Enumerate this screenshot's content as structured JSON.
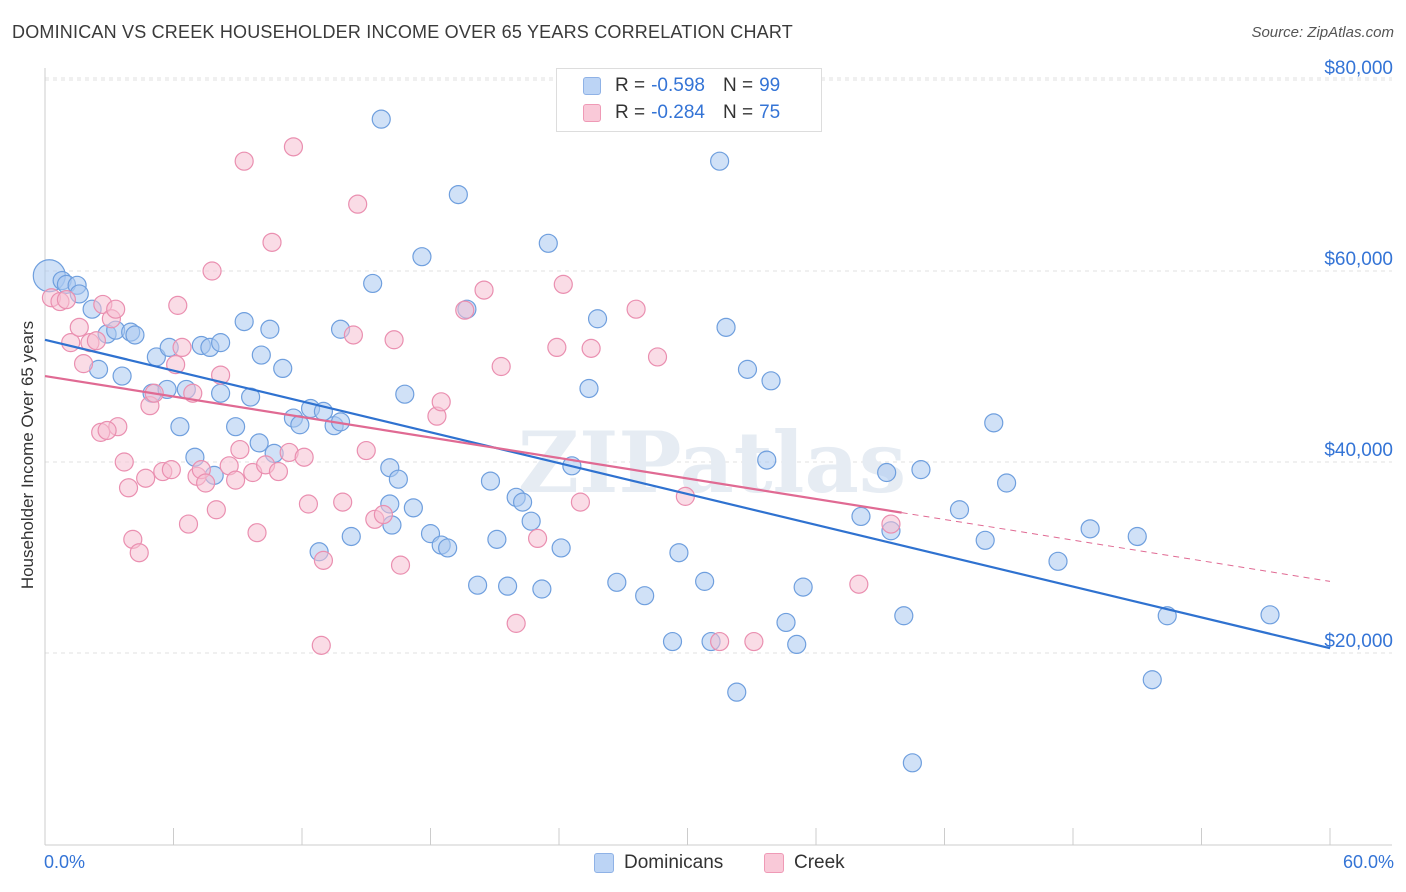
{
  "title": "DOMINICAN VS CREEK HOUSEHOLDER INCOME OVER 65 YEARS CORRELATION CHART",
  "source": "Source: ZipAtlas.com",
  "watermark": "ZIPatlas",
  "legend": {
    "rows": [
      {
        "r_label": "R =",
        "r_value": "-0.598",
        "n_label": "N =",
        "n_value": "99"
      },
      {
        "r_label": "R =",
        "r_value": "-0.284",
        "n_label": "N =",
        "n_value": "75"
      }
    ]
  },
  "bottom_legend": {
    "series1": "Dominicans",
    "series2": "Creek"
  },
  "colors": {
    "blue_fill": "#a9c8f0",
    "blue_stroke": "#6f9fde",
    "blue_line": "#2f72d0",
    "pink_fill": "#f6bfd1",
    "pink_stroke": "#ea8fb0",
    "pink_line": "#e06a93",
    "axis_text": "#3474d6",
    "grid": "#e2e2e2"
  },
  "chart_data": {
    "type": "scatter",
    "title": "DOMINICAN VS CREEK HOUSEHOLDER INCOME OVER 65 YEARS CORRELATION CHART",
    "xlabel": "",
    "ylabel": "Householder Income Over 65 years",
    "xlim": [
      0,
      60
    ],
    "ylim": [
      0,
      82000
    ],
    "x_tick_labels": [
      "0.0%",
      "60.0%"
    ],
    "y_ticks": [
      20000,
      40000,
      60000,
      80000
    ],
    "y_tick_labels": [
      "$20,000",
      "$40,000",
      "$60,000",
      "$80,000"
    ],
    "grid": true,
    "series": [
      {
        "name": "Dominicans",
        "points": [
          [
            0.2,
            59500
          ],
          [
            0.8,
            59000
          ],
          [
            1.0,
            58600
          ],
          [
            1.5,
            58500
          ],
          [
            1.6,
            57600
          ],
          [
            2.2,
            56000
          ],
          [
            2.9,
            53400
          ],
          [
            3.3,
            53800
          ],
          [
            4.0,
            53600
          ],
          [
            4.2,
            53300
          ],
          [
            2.5,
            49700
          ],
          [
            3.6,
            49000
          ],
          [
            5.2,
            51000
          ],
          [
            5.8,
            52000
          ],
          [
            7.3,
            52200
          ],
          [
            7.7,
            52000
          ],
          [
            8.2,
            52500
          ],
          [
            9.3,
            54700
          ],
          [
            10.1,
            51200
          ],
          [
            10.5,
            53900
          ],
          [
            5.0,
            47200
          ],
          [
            5.7,
            47600
          ],
          [
            6.6,
            47600
          ],
          [
            8.2,
            47200
          ],
          [
            9.6,
            46800
          ],
          [
            11.1,
            49800
          ],
          [
            6.3,
            43700
          ],
          [
            7.0,
            40500
          ],
          [
            7.9,
            38600
          ],
          [
            8.9,
            43700
          ],
          [
            10.7,
            40900
          ],
          [
            11.6,
            44600
          ],
          [
            11.9,
            43900
          ],
          [
            12.4,
            45600
          ],
          [
            13.0,
            45300
          ],
          [
            13.5,
            43800
          ],
          [
            13.8,
            44200
          ],
          [
            13.8,
            53900
          ],
          [
            15.3,
            58700
          ],
          [
            15.7,
            75900
          ],
          [
            16.1,
            39400
          ],
          [
            16.5,
            38200
          ],
          [
            17.2,
            35200
          ],
          [
            16.1,
            35600
          ],
          [
            16.8,
            47100
          ],
          [
            17.6,
            61500
          ],
          [
            18.0,
            32500
          ],
          [
            18.5,
            31300
          ],
          [
            18.8,
            31000
          ],
          [
            19.3,
            68000
          ],
          [
            19.7,
            56000
          ],
          [
            20.2,
            27100
          ],
          [
            20.8,
            38000
          ],
          [
            21.1,
            31900
          ],
          [
            21.6,
            27000
          ],
          [
            22.0,
            36300
          ],
          [
            22.3,
            35800
          ],
          [
            22.7,
            33800
          ],
          [
            23.2,
            26700
          ],
          [
            23.5,
            62900
          ],
          [
            24.1,
            31000
          ],
          [
            24.6,
            39600
          ],
          [
            25.4,
            47700
          ],
          [
            25.8,
            55000
          ],
          [
            26.7,
            27400
          ],
          [
            28.0,
            26000
          ],
          [
            29.3,
            21200
          ],
          [
            29.6,
            30500
          ],
          [
            30.8,
            27500
          ],
          [
            31.1,
            21200
          ],
          [
            31.5,
            71500
          ],
          [
            31.8,
            54100
          ],
          [
            32.3,
            15900
          ],
          [
            32.8,
            49700
          ],
          [
            33.7,
            40200
          ],
          [
            33.9,
            48500
          ],
          [
            34.6,
            23200
          ],
          [
            35.1,
            20900
          ],
          [
            35.4,
            26900
          ],
          [
            38.1,
            34300
          ],
          [
            39.3,
            38900
          ],
          [
            39.5,
            32800
          ],
          [
            40.1,
            23900
          ],
          [
            40.5,
            8500
          ],
          [
            40.9,
            39200
          ],
          [
            42.7,
            35000
          ],
          [
            43.9,
            31800
          ],
          [
            44.3,
            44100
          ],
          [
            44.9,
            37800
          ],
          [
            47.3,
            29600
          ],
          [
            48.8,
            33000
          ],
          [
            51.0,
            32200
          ],
          [
            51.7,
            17200
          ],
          [
            52.4,
            23900
          ],
          [
            57.2,
            24000
          ],
          [
            12.8,
            30600
          ],
          [
            16.2,
            33400
          ],
          [
            14.3,
            32200
          ],
          [
            10.0,
            42000
          ]
        ]
      },
      {
        "name": "Creek",
        "points": [
          [
            0.3,
            57200
          ],
          [
            0.7,
            56800
          ],
          [
            1.0,
            57000
          ],
          [
            1.2,
            52500
          ],
          [
            1.6,
            54100
          ],
          [
            1.8,
            50300
          ],
          [
            2.1,
            52500
          ],
          [
            2.4,
            52700
          ],
          [
            2.7,
            56500
          ],
          [
            3.1,
            55000
          ],
          [
            3.3,
            56000
          ],
          [
            3.4,
            43700
          ],
          [
            2.6,
            43100
          ],
          [
            2.9,
            43300
          ],
          [
            3.7,
            40000
          ],
          [
            3.9,
            37300
          ],
          [
            4.1,
            31900
          ],
          [
            4.4,
            30500
          ],
          [
            4.7,
            38300
          ],
          [
            4.9,
            45900
          ],
          [
            5.1,
            47200
          ],
          [
            5.5,
            39000
          ],
          [
            5.9,
            39200
          ],
          [
            6.1,
            50200
          ],
          [
            6.2,
            56400
          ],
          [
            6.4,
            52000
          ],
          [
            6.7,
            33500
          ],
          [
            6.9,
            47200
          ],
          [
            7.1,
            38500
          ],
          [
            7.3,
            39200
          ],
          [
            7.5,
            37800
          ],
          [
            7.8,
            60000
          ],
          [
            8.0,
            35000
          ],
          [
            8.2,
            49100
          ],
          [
            8.6,
            39600
          ],
          [
            8.9,
            38100
          ],
          [
            9.1,
            41300
          ],
          [
            9.3,
            71500
          ],
          [
            9.7,
            38900
          ],
          [
            9.9,
            32600
          ],
          [
            10.3,
            39700
          ],
          [
            10.6,
            63000
          ],
          [
            10.9,
            39000
          ],
          [
            11.4,
            41000
          ],
          [
            11.6,
            73000
          ],
          [
            12.3,
            35600
          ],
          [
            13.0,
            29700
          ],
          [
            12.9,
            20800
          ],
          [
            13.9,
            35800
          ],
          [
            14.4,
            53300
          ],
          [
            14.6,
            67000
          ],
          [
            15.0,
            41200
          ],
          [
            15.4,
            34000
          ],
          [
            15.8,
            34500
          ],
          [
            16.3,
            52800
          ],
          [
            16.6,
            29200
          ],
          [
            18.3,
            44800
          ],
          [
            18.5,
            46300
          ],
          [
            19.6,
            55900
          ],
          [
            20.5,
            58000
          ],
          [
            21.3,
            50000
          ],
          [
            22.0,
            23100
          ],
          [
            23.0,
            32000
          ],
          [
            23.9,
            52000
          ],
          [
            24.2,
            58600
          ],
          [
            25.0,
            35800
          ],
          [
            25.5,
            51900
          ],
          [
            27.6,
            56000
          ],
          [
            28.6,
            51000
          ],
          [
            29.9,
            36400
          ],
          [
            31.5,
            21200
          ],
          [
            33.1,
            21200
          ],
          [
            38.0,
            27200
          ],
          [
            39.5,
            33500
          ],
          [
            12.1,
            40500
          ]
        ]
      }
    ],
    "trendlines": [
      {
        "series": "Dominicans",
        "x": [
          0,
          60
        ],
        "y": [
          52800,
          20500
        ],
        "style": "solid"
      },
      {
        "series": "Creek",
        "x": [
          0,
          40
        ],
        "y": [
          49000,
          34700
        ],
        "style": "solid"
      },
      {
        "series": "Creek",
        "x": [
          40,
          60
        ],
        "y": [
          34700,
          27500
        ],
        "style": "dashed"
      }
    ]
  }
}
